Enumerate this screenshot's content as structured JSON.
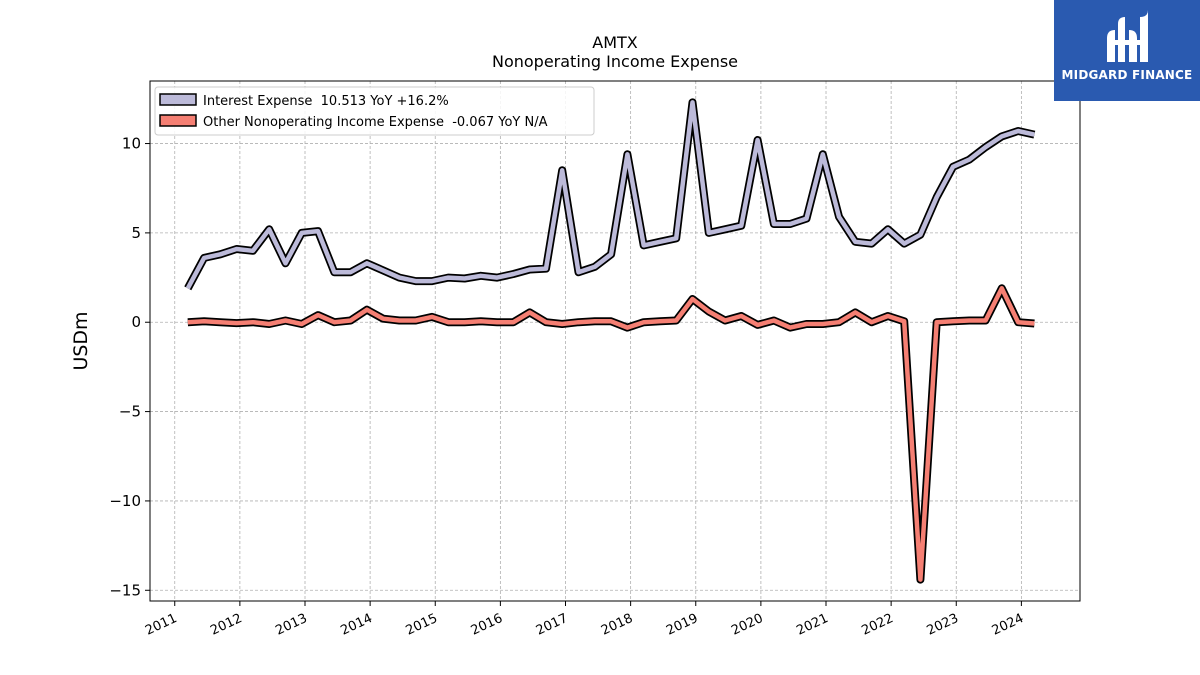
{
  "chart_data": {
    "type": "line",
    "title": "AMTX",
    "subtitle": "Nonoperating Income Expense",
    "ylabel": "USDm",
    "xlabel": "",
    "ylim": [
      -15.6,
      13.5
    ],
    "xlim": [
      2010.62,
      2024.9
    ],
    "yticks": [
      10,
      5,
      0,
      -5,
      -10,
      -15
    ],
    "ytick_labels": [
      "10",
      "5",
      "0",
      "−5",
      "−10",
      "−15"
    ],
    "xticks": [
      2011,
      2012,
      2013,
      2014,
      2015,
      2016,
      2017,
      2018,
      2019,
      2020,
      2021,
      2022,
      2023,
      2024
    ],
    "xtick_labels": [
      "2011",
      "2012",
      "2013",
      "2014",
      "2015",
      "2016",
      "2017",
      "2018",
      "2019",
      "2020",
      "2021",
      "2022",
      "2023",
      "2024"
    ],
    "grid": true,
    "legend_position": "top-left",
    "series": [
      {
        "name": "Interest Expense  10.513 YoY +16.2%",
        "color": "#bcbad9",
        "x": [
          2011.2,
          2011.45,
          2011.7,
          2011.95,
          2012.2,
          2012.45,
          2012.7,
          2012.95,
          2013.2,
          2013.45,
          2013.7,
          2013.95,
          2014.2,
          2014.45,
          2014.7,
          2014.95,
          2015.2,
          2015.45,
          2015.7,
          2015.95,
          2016.2,
          2016.45,
          2016.7,
          2016.95,
          2017.2,
          2017.45,
          2017.7,
          2017.95,
          2018.2,
          2018.45,
          2018.7,
          2018.95,
          2019.2,
          2019.45,
          2019.7,
          2019.95,
          2020.2,
          2020.45,
          2020.7,
          2020.95,
          2021.2,
          2021.45,
          2021.7,
          2021.95,
          2022.2,
          2022.45,
          2022.7,
          2022.95,
          2023.2,
          2023.45,
          2023.7,
          2023.95,
          2024.2
        ],
        "values": [
          1.9,
          3.6,
          3.8,
          4.1,
          4.0,
          5.2,
          3.3,
          5.0,
          5.1,
          2.8,
          2.8,
          3.3,
          2.9,
          2.5,
          2.3,
          2.3,
          2.5,
          2.45,
          2.6,
          2.5,
          2.7,
          2.95,
          3.0,
          8.5,
          2.8,
          3.1,
          3.8,
          9.4,
          4.3,
          4.5,
          4.7,
          12.3,
          5.0,
          5.2,
          5.4,
          10.2,
          5.5,
          5.5,
          5.8,
          9.4,
          5.9,
          4.5,
          4.4,
          5.2,
          4.4,
          4.9,
          7.0,
          8.7,
          9.1,
          9.8,
          10.4,
          10.7,
          10.5
        ]
      },
      {
        "name": "Other Nonoperating Income Expense  -0.067 YoY N/A",
        "color": "#f57f73",
        "x": [
          2011.2,
          2011.45,
          2011.7,
          2011.95,
          2012.2,
          2012.45,
          2012.7,
          2012.95,
          2013.2,
          2013.45,
          2013.7,
          2013.95,
          2014.2,
          2014.45,
          2014.7,
          2014.95,
          2015.2,
          2015.45,
          2015.7,
          2015.95,
          2016.2,
          2016.45,
          2016.7,
          2016.95,
          2017.2,
          2017.45,
          2017.7,
          2017.95,
          2018.2,
          2018.45,
          2018.7,
          2018.95,
          2019.2,
          2019.45,
          2019.7,
          2019.95,
          2020.2,
          2020.45,
          2020.7,
          2020.95,
          2021.2,
          2021.45,
          2021.7,
          2021.95,
          2022.2,
          2022.45,
          2022.7,
          2022.95,
          2023.2,
          2023.45,
          2023.7,
          2023.95,
          2024.2
        ],
        "values": [
          0.0,
          0.05,
          0.0,
          -0.05,
          0.0,
          -0.1,
          0.1,
          -0.1,
          0.4,
          0.0,
          0.1,
          0.7,
          0.2,
          0.1,
          0.1,
          0.3,
          0.0,
          0.0,
          0.05,
          0.0,
          0.0,
          0.55,
          0.0,
          -0.1,
          0.0,
          0.05,
          0.05,
          -0.3,
          0.0,
          0.05,
          0.1,
          1.3,
          0.6,
          0.1,
          0.35,
          -0.15,
          0.1,
          -0.3,
          -0.1,
          -0.1,
          0.0,
          0.55,
          0.0,
          0.35,
          0.05,
          -14.4,
          0.0,
          0.05,
          0.1,
          0.1,
          1.9,
          0.0,
          -0.07
        ]
      }
    ]
  },
  "logo": {
    "text": "MIDGARD FINANCE"
  }
}
